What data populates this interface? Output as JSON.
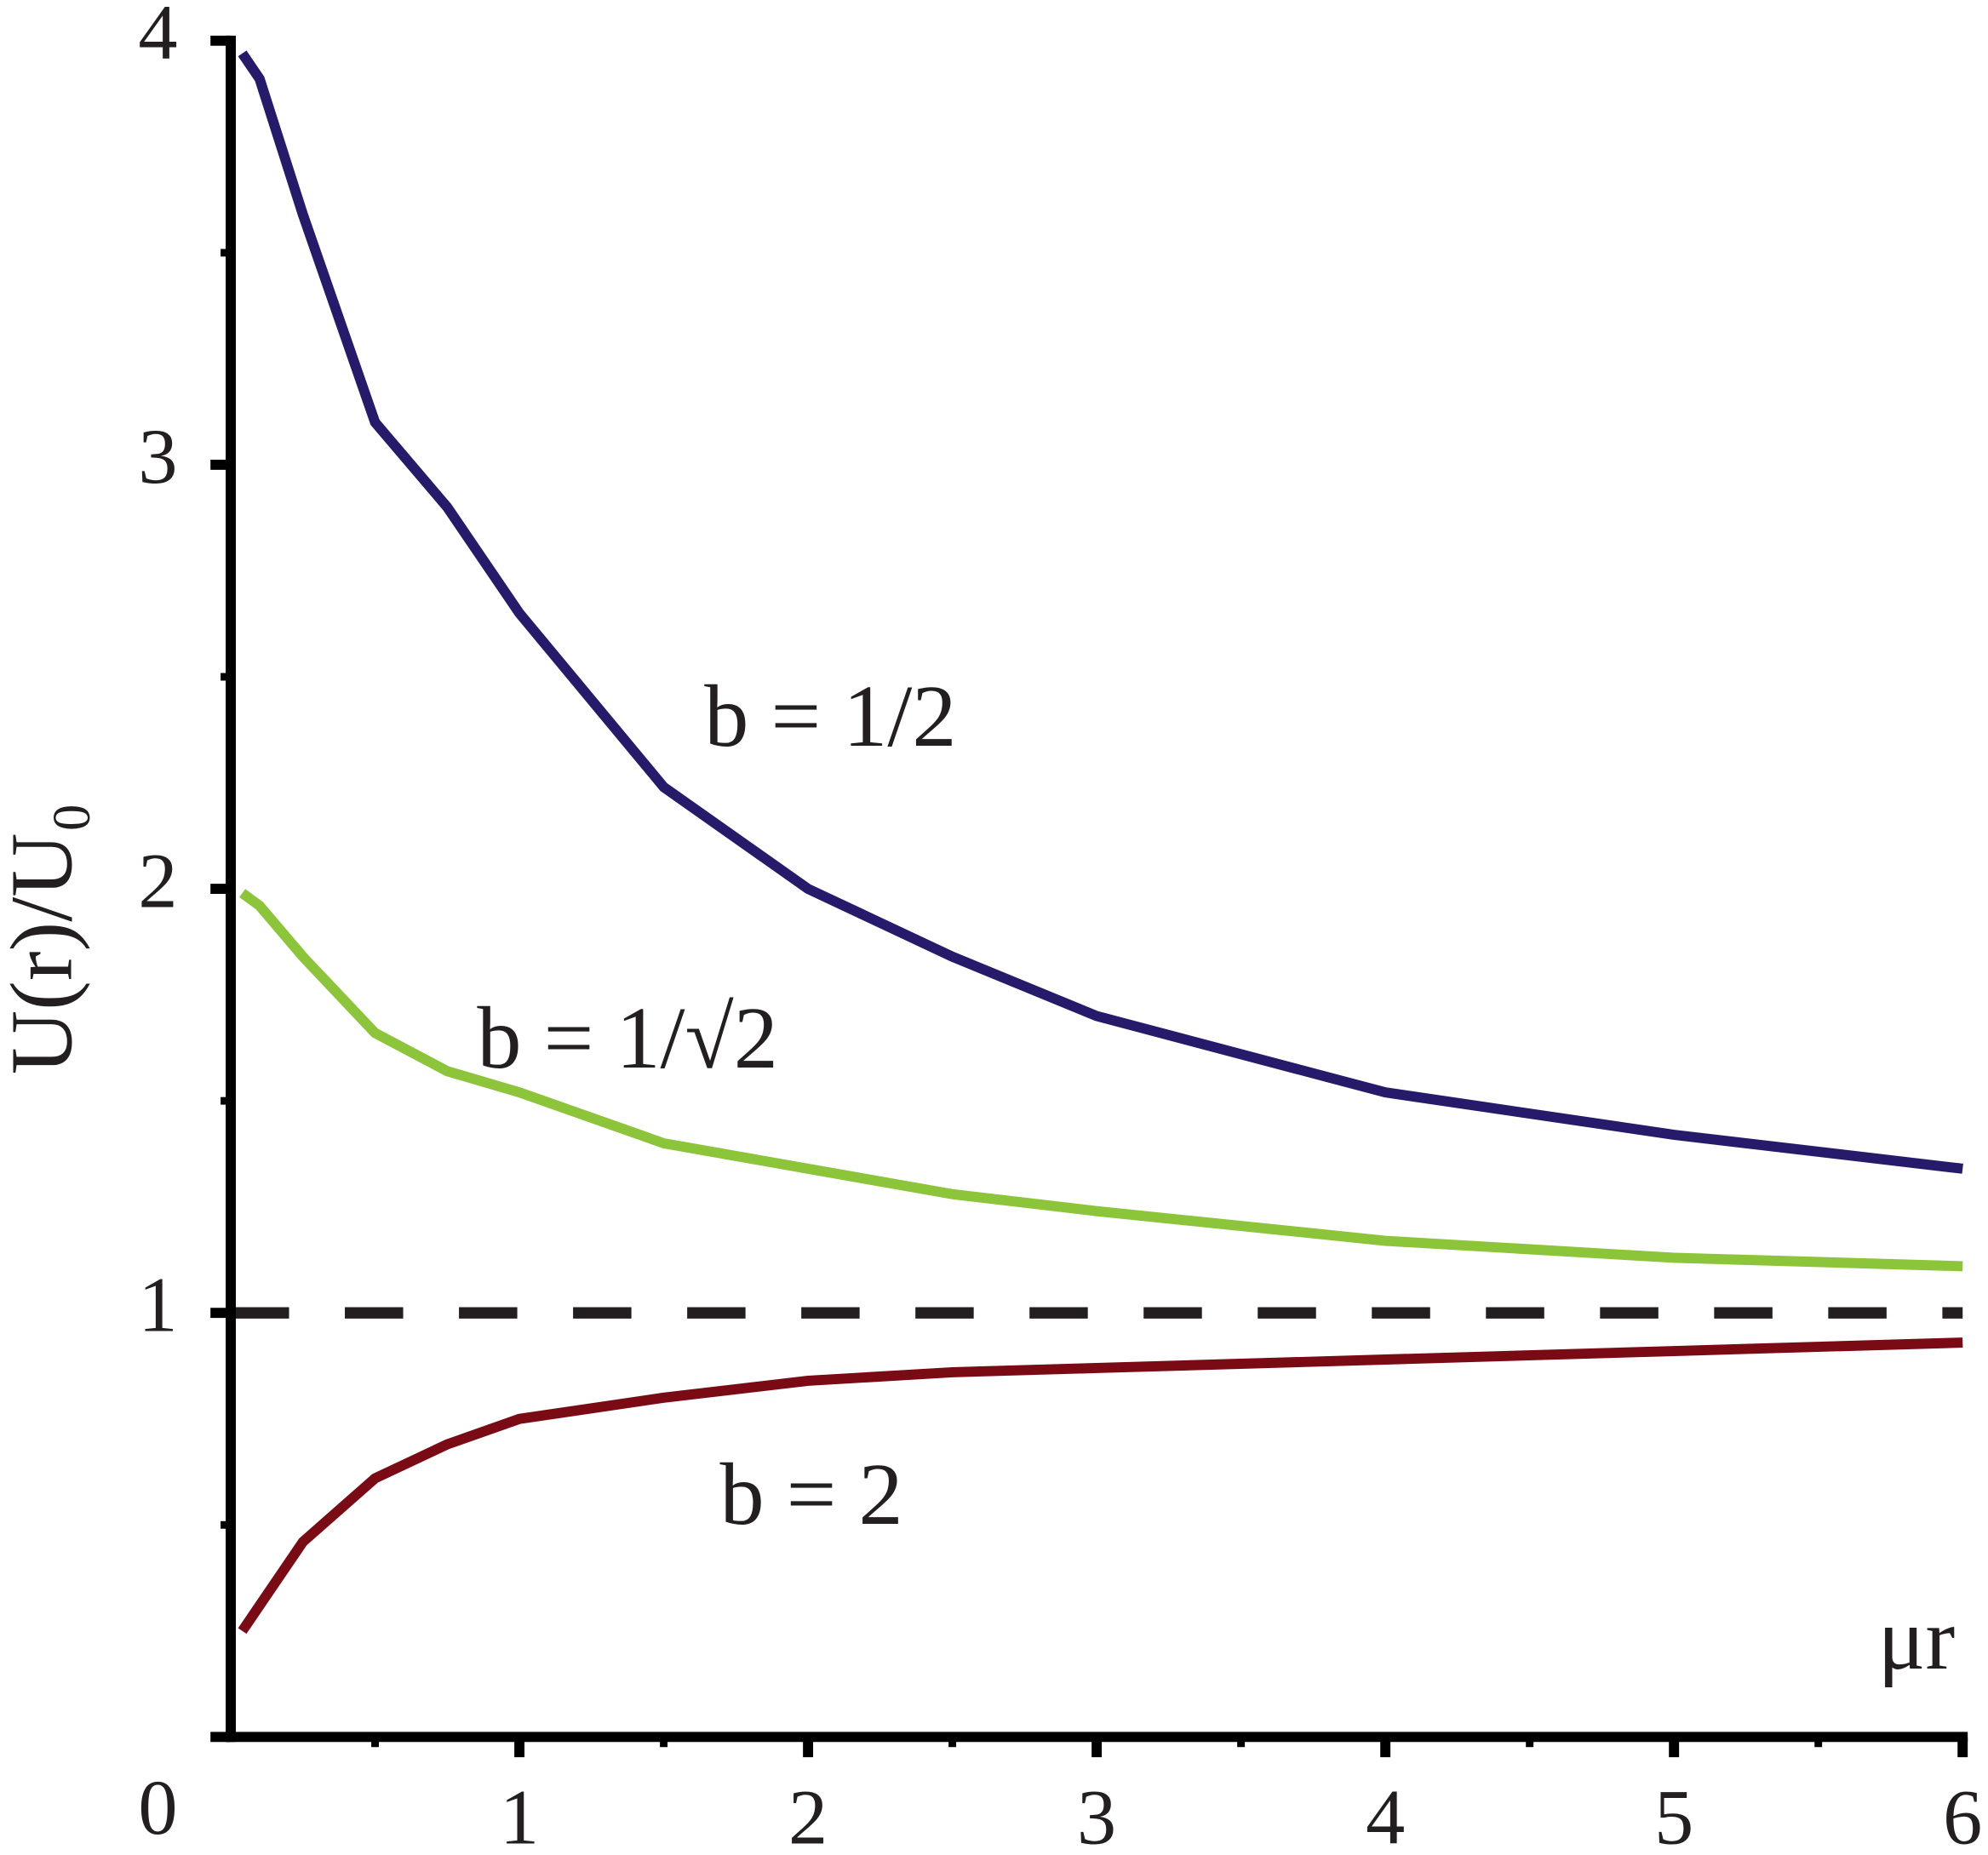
{
  "chart_data": {
    "type": "line",
    "x_label": "μr",
    "y_label": "U(r)/U₀",
    "x": [
      0.04,
      0.1,
      0.25,
      0.5,
      0.75,
      1,
      1.5,
      2,
      2.5,
      3,
      4,
      5,
      6
    ],
    "series": [
      {
        "name": "b = 1/2",
        "color": "#261a6b",
        "values": [
          3.97,
          3.91,
          3.59,
          3.1,
          2.9,
          2.65,
          2.24,
          2.0,
          1.84,
          1.7,
          1.52,
          1.42,
          1.34
        ]
      },
      {
        "name": "b = 1/√2",
        "color": "#8cc43a",
        "values": [
          1.99,
          1.96,
          1.84,
          1.66,
          1.57,
          1.52,
          1.4,
          1.34,
          1.28,
          1.24,
          1.17,
          1.13,
          1.11
        ]
      },
      {
        "name": "b = 2",
        "color": "#7a0a14",
        "values": [
          0.25,
          0.31,
          0.46,
          0.61,
          0.69,
          0.75,
          0.8,
          0.84,
          0.86,
          0.87,
          0.89,
          0.91,
          0.93
        ]
      }
    ],
    "hline": 1,
    "xlim": [
      0,
      6
    ],
    "ylim": [
      0,
      4
    ],
    "xticks": [
      1,
      2,
      3,
      4,
      5,
      6
    ],
    "yticks": [
      0,
      1,
      2,
      3,
      4
    ],
    "xminor": [
      0.5,
      1.5,
      2.5,
      3.5,
      4.5,
      5.5
    ],
    "yminor": [
      0.5,
      1.5,
      2.5,
      3.5
    ]
  }
}
